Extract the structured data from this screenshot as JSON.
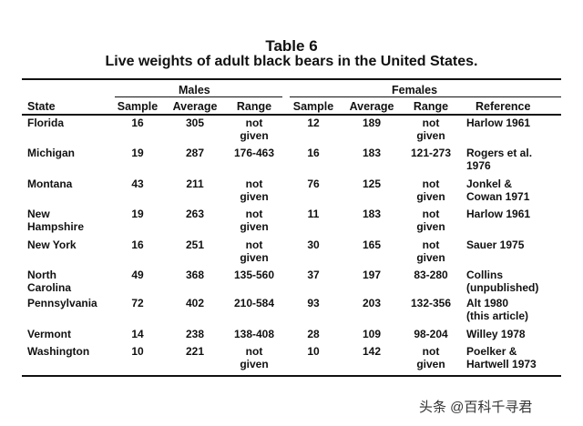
{
  "title": "Table 6",
  "subtitle": "Live weights of adult black bears in the United States.",
  "groups": {
    "males": "Males",
    "females": "Females"
  },
  "headers": {
    "state": "State",
    "m_sample": "Sample",
    "m_average": "Average",
    "m_range": "Range",
    "f_sample": "Sample",
    "f_average": "Average",
    "f_range": "Range",
    "reference": "Reference"
  },
  "rows": [
    {
      "state": "Florida",
      "m_sample": "16",
      "m_average": "305",
      "m_range": "not\ngiven",
      "f_sample": "12",
      "f_average": "189",
      "f_range": "not\ngiven",
      "reference": "Harlow 1961"
    },
    {
      "state": "Michigan",
      "m_sample": "19",
      "m_average": "287",
      "m_range": "176-463",
      "f_sample": "16",
      "f_average": "183",
      "f_range": "121-273",
      "reference": "Rogers et al.\n1976"
    },
    {
      "state": "Montana",
      "m_sample": "43",
      "m_average": "211",
      "m_range": "not\ngiven",
      "f_sample": "76",
      "f_average": "125",
      "f_range": "not\ngiven",
      "reference": "Jonkel &\nCowan 1971"
    },
    {
      "state": "New\nHampshire",
      "m_sample": "19",
      "m_average": "263",
      "m_range": "not\ngiven",
      "f_sample": "11",
      "f_average": "183",
      "f_range": "not\ngiven",
      "reference": "Harlow 1961"
    },
    {
      "state": "New York",
      "m_sample": "16",
      "m_average": "251",
      "m_range": "not\ngiven",
      "f_sample": "30",
      "f_average": "165",
      "f_range": "not\ngiven",
      "reference": "Sauer 1975"
    },
    {
      "state": "North\nCarolina",
      "m_sample": "49",
      "m_average": "368",
      "m_range": "135-560",
      "f_sample": "37",
      "f_average": "197",
      "f_range": "83-280",
      "reference": "Collins\n(unpublished)"
    },
    {
      "state": "Pennsylvania",
      "m_sample": "72",
      "m_average": "402",
      "m_range": "210-584",
      "f_sample": "93",
      "f_average": "203",
      "f_range": "132-356",
      "reference": "Alt 1980\n(this article)"
    },
    {
      "state": "Vermont",
      "m_sample": "14",
      "m_average": "238",
      "m_range": "138-408",
      "f_sample": "28",
      "f_average": "109",
      "f_range": "98-204",
      "reference": "Willey 1978"
    },
    {
      "state": "Washington",
      "m_sample": "10",
      "m_average": "221",
      "m_range": "not\ngiven",
      "f_sample": "10",
      "f_average": "142",
      "f_range": "not\ngiven",
      "reference": "Poelker &\nHartwell 1973"
    }
  ],
  "watermark": "头条 @百科千寻君"
}
